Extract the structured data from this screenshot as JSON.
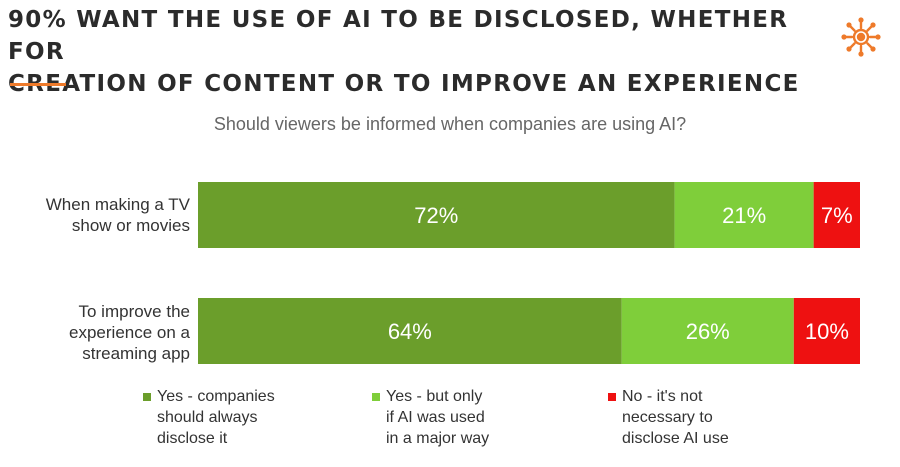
{
  "header": {
    "title": "90% WANT THE USE OF AI TO BE DISCLOSED, WHETHER FOR CREATION OF CONTENT OR TO IMPROVE AN EXPERIENCE",
    "accent_color": "#ee7a2a",
    "logo_icon": "sun-network-icon"
  },
  "chart_data": {
    "type": "bar",
    "orientation": "horizontal",
    "stacked": true,
    "title": "Should viewers be informed when companies are using AI?",
    "categories": [
      "When making a TV show or movies",
      "To improve the experience on a streaming app"
    ],
    "series": [
      {
        "name": "Yes - companies should always disclose it",
        "color": "#6b9e2b",
        "values": [
          72,
          64
        ],
        "labels": [
          "72%",
          "64%"
        ]
      },
      {
        "name": "Yes - but only if AI was used in a major way",
        "color": "#7fce3a",
        "values": [
          21,
          26
        ],
        "labels": [
          "21%",
          "26%"
        ]
      },
      {
        "name": "No - it's not necessary to disclose AI use",
        "color": "#ee1111",
        "values": [
          7,
          10
        ],
        "labels": [
          "7%",
          "10%"
        ]
      }
    ],
    "xlim": [
      0,
      100
    ],
    "grid": false,
    "legend": "bottom"
  },
  "row_labels": [
    "When making a TV\nshow or movies",
    "To improve the\nexperience on a\nstreaming app"
  ],
  "legend_labels": [
    "Yes - companies\nshould always\ndisclose it",
    "Yes - but only\nif AI was used\nin a major way",
    "No - it's not\nnecessary to\ndisclose AI use"
  ]
}
